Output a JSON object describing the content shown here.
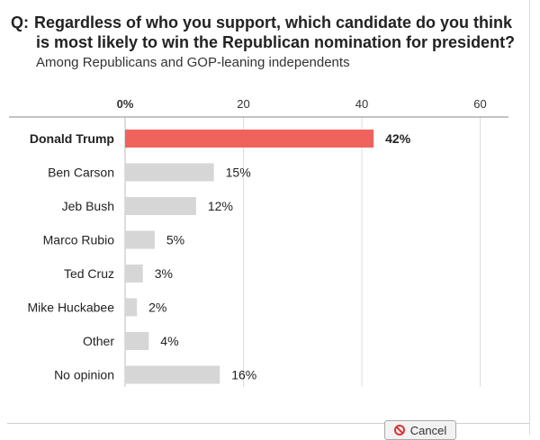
{
  "question": {
    "prefix": "Q:",
    "line1": "Regardless of who you support, which candidate do you think",
    "line2": "is most likely to win the Republican nomination for president?",
    "subtitle": "Among Republicans and GOP-leaning independents"
  },
  "chart_data": {
    "type": "bar",
    "orientation": "horizontal",
    "title": "Regardless of who you support, which candidate do you think is most likely to win the Republican nomination for president?",
    "subtitle": "Among Republicans and GOP-leaning independents",
    "categories": [
      "Donald Trump",
      "Ben Carson",
      "Jeb Bush",
      "Marco Rubio",
      "Ted Cruz",
      "Mike Huckabee",
      "Other",
      "No opinion"
    ],
    "values": [
      42,
      15,
      12,
      5,
      3,
      2,
      4,
      16
    ],
    "value_labels": [
      "42%",
      "15%",
      "12%",
      "5%",
      "3%",
      "2%",
      "4%",
      "16%"
    ],
    "highlight_index": 0,
    "x_ticks": [
      0,
      20,
      40,
      60
    ],
    "x_tick_labels": [
      "0%",
      "20",
      "40",
      "60"
    ],
    "xlim": [
      0,
      60
    ],
    "grid": true,
    "colors": {
      "highlight": "#f0635c",
      "default": "#d6d6d6",
      "grid": "#dcdcdc",
      "axis": "#888888"
    }
  },
  "footer": {
    "cancel_label": "Cancel",
    "cancel_icon": "cancel-icon"
  }
}
